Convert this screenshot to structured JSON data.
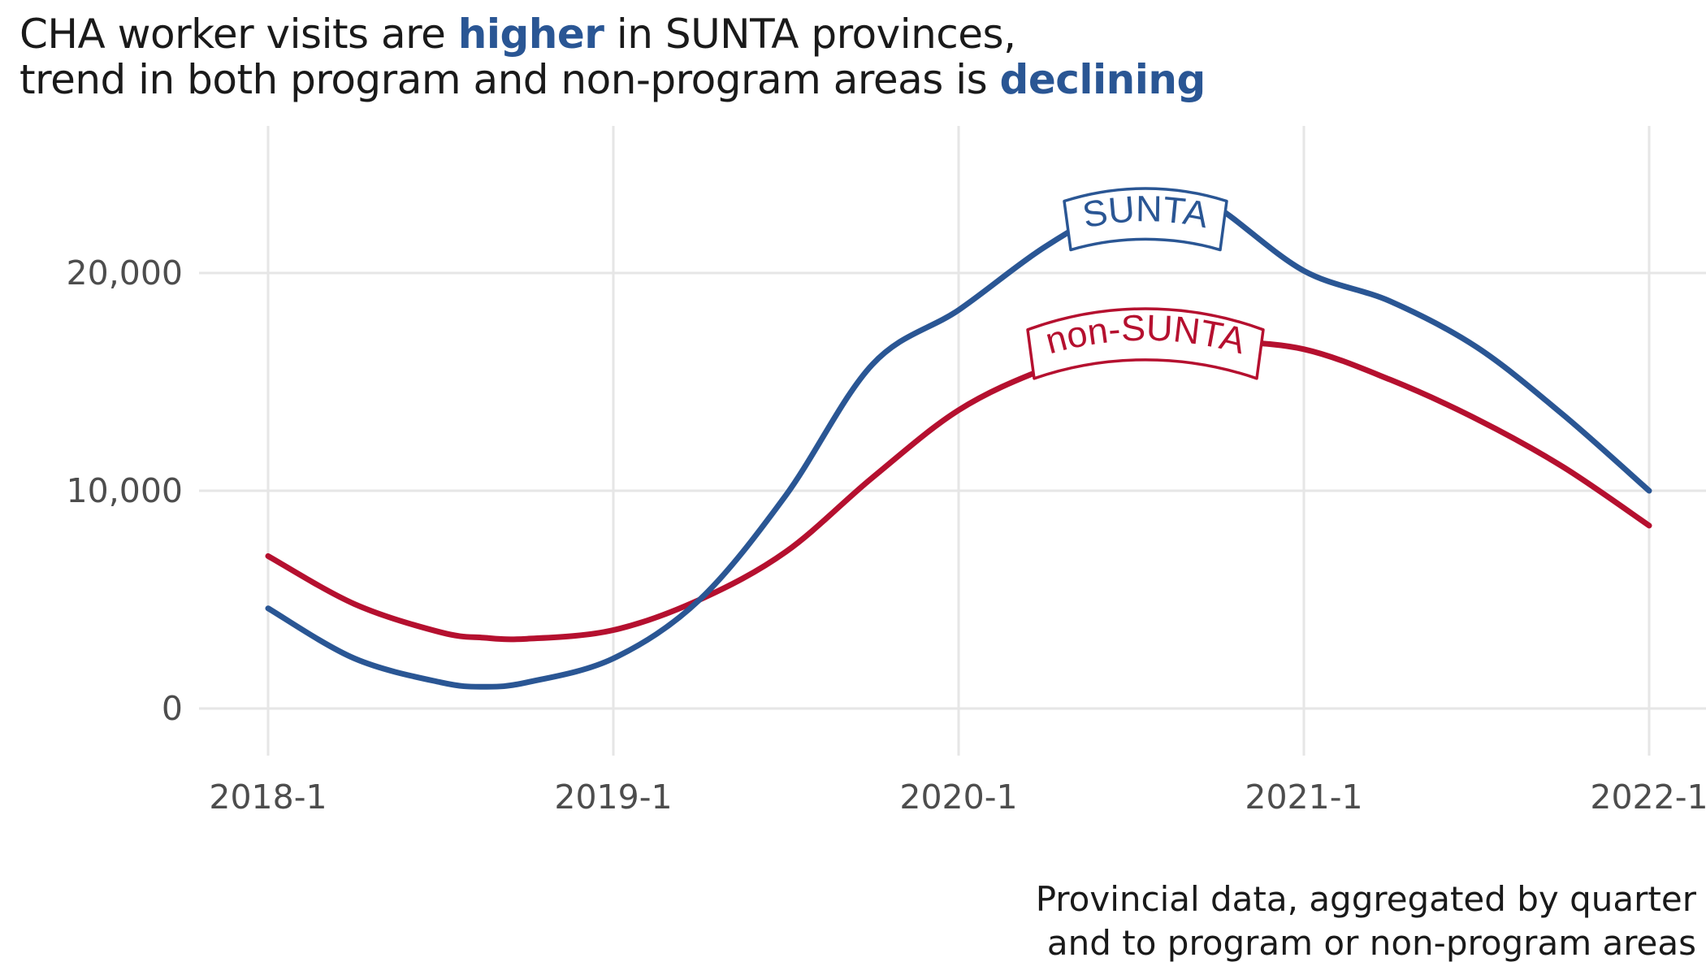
{
  "title": {
    "line1_pre": "CHA worker visits are ",
    "line1_hl": "higher",
    "line1_post": " in SUNTA provinces,",
    "line2_pre": "trend in both program and non-program areas is ",
    "line2_hl": "declining"
  },
  "caption": {
    "line1": "Provincial data, aggregated by quarter",
    "line2": "and to program or non-program areas"
  },
  "colors": {
    "sunta": "#2a5694",
    "non_sunta": "#b5102f",
    "highlight": "#2a5694"
  },
  "chart_data": {
    "type": "line",
    "x_ticks": [
      "2018-1",
      "2019-1",
      "2020-1",
      "2021-1",
      "2022-1"
    ],
    "y_ticks": [
      "0",
      "10,000",
      "20,000"
    ],
    "y_tick_values": [
      0,
      10000,
      20000
    ],
    "xlim": [
      2017.8,
      2022.2
    ],
    "ylim": [
      -2500,
      26500
    ],
    "grid": true,
    "x": [
      2018.0,
      2018.25,
      2018.5,
      2018.625,
      2018.75,
      2019.0,
      2019.25,
      2019.5,
      2019.75,
      2020.0,
      2020.25,
      2020.5,
      2020.625,
      2020.75,
      2021.0,
      2021.25,
      2021.5,
      2021.75,
      2022.0
    ],
    "series": [
      {
        "name": "SUNTA",
        "values": [
          4600,
          2300,
          1200,
          1000,
          1200,
          2300,
          5000,
          9800,
          15800,
          18300,
          21200,
          23400,
          23600,
          23000,
          20100,
          18700,
          16600,
          13500,
          10000
        ]
      },
      {
        "name": "non-SUNTA",
        "values": [
          7000,
          4800,
          3500,
          3250,
          3200,
          3600,
          5000,
          7200,
          10600,
          13700,
          15600,
          16800,
          17000,
          16900,
          16500,
          15100,
          13300,
          11100,
          8400
        ]
      }
    ]
  }
}
